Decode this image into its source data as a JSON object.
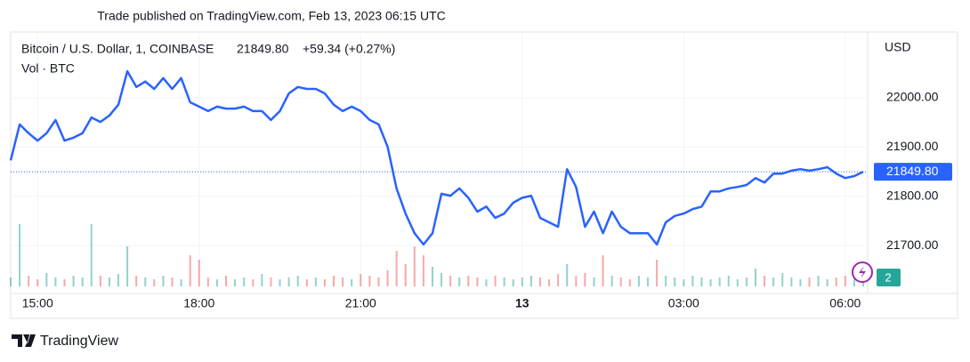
{
  "header": {
    "published": "Trade published on TradingView.com, Feb 13, 2023 06:15 UTC",
    "brand": "TradingView"
  },
  "chart_data": {
    "type": "line",
    "symbol": "Bitcoin / U.S. Dollar, 1, COINBASE",
    "last_price": {
      "value": 21849.8,
      "label": "21849.80"
    },
    "change": "+59.34 (+0.27%)",
    "volume_label": "Vol · BTC",
    "y_axis_label": "USD",
    "badge": "2",
    "categories": [
      null,
      null,
      null,
      "15:00",
      null,
      null,
      null,
      null,
      null,
      null,
      null,
      null,
      null,
      null,
      null,
      null,
      null,
      null,
      null,
      null,
      null,
      "18:00",
      null,
      null,
      null,
      null,
      null,
      null,
      null,
      null,
      null,
      null,
      null,
      null,
      null,
      null,
      null,
      null,
      null,
      "21:00",
      null,
      null,
      null,
      null,
      null,
      null,
      null,
      null,
      null,
      null,
      null,
      null,
      null,
      null,
      null,
      null,
      null,
      "13",
      null,
      null,
      null,
      null,
      null,
      null,
      null,
      null,
      null,
      null,
      null,
      null,
      null,
      null,
      null,
      null,
      null,
      "03:00",
      null,
      null,
      null,
      null,
      null,
      null,
      null,
      null,
      null,
      null,
      null,
      null,
      null,
      null,
      null,
      null,
      null,
      "06:00",
      null,
      null
    ],
    "series": [
      {
        "name": "BTCUSD",
        "color": "#2962ff",
        "values": [
          21873,
          21946,
          21928,
          21913,
          21928,
          21955,
          21913,
          21919,
          21928,
          21960,
          21951,
          21964,
          21986,
          22054,
          22022,
          22033,
          22018,
          22040,
          22018,
          22040,
          21991,
          21982,
          21973,
          21982,
          21978,
          21978,
          21982,
          21973,
          21973,
          21955,
          21973,
          22009,
          22022,
          22018,
          22018,
          22009,
          21986,
          21973,
          21982,
          21973,
          21955,
          21946,
          21901,
          21816,
          21765,
          21725,
          21702,
          21725,
          21805,
          21801,
          21816,
          21797,
          21769,
          21779,
          21756,
          21765,
          21787,
          21797,
          21801,
          21756,
          21747,
          21738,
          21855,
          21819,
          21738,
          21769,
          21725,
          21769,
          21738,
          21725,
          21725,
          21725,
          21702,
          21747,
          21760,
          21765,
          21774,
          21779,
          21810,
          21810,
          21816,
          21819,
          21823,
          21837,
          21828,
          21846,
          21846,
          21852,
          21855,
          21852,
          21855,
          21859,
          21846,
          21837,
          21841,
          21849.8
        ]
      },
      {
        "name": "Vol",
        "color": "#26a69a",
        "values": [
          10,
          70,
          12,
          8,
          15,
          10,
          8,
          12,
          10,
          70,
          12,
          10,
          14,
          45,
          12,
          10,
          8,
          12,
          10,
          8,
          35,
          30,
          10,
          8,
          12,
          8,
          10,
          8,
          14,
          10,
          8,
          10,
          12,
          8,
          10,
          8,
          12,
          10,
          8,
          14,
          12,
          10,
          18,
          40,
          25,
          45,
          35,
          22,
          15,
          12,
          10,
          12,
          10,
          8,
          12,
          10,
          8,
          10,
          12,
          10,
          8,
          14,
          25,
          12,
          15,
          10,
          35,
          12,
          10,
          8,
          12,
          10,
          30,
          12,
          10,
          8,
          12,
          10,
          8,
          10,
          12,
          8,
          10,
          20,
          12,
          10,
          15,
          10,
          8,
          10,
          12,
          8,
          10,
          12,
          10,
          8
        ]
      }
    ],
    "down_color": "#ef5350",
    "ylim": [
      21617,
      22130
    ],
    "yticks": [
      {
        "value": 21700,
        "label": "21700.00"
      },
      {
        "value": 21800,
        "label": "21800.00"
      },
      {
        "value": 21900,
        "label": "21900.00"
      },
      {
        "value": 22000,
        "label": "22000.00"
      }
    ],
    "volume_lim": [
      0,
      100
    ],
    "grid": true
  }
}
